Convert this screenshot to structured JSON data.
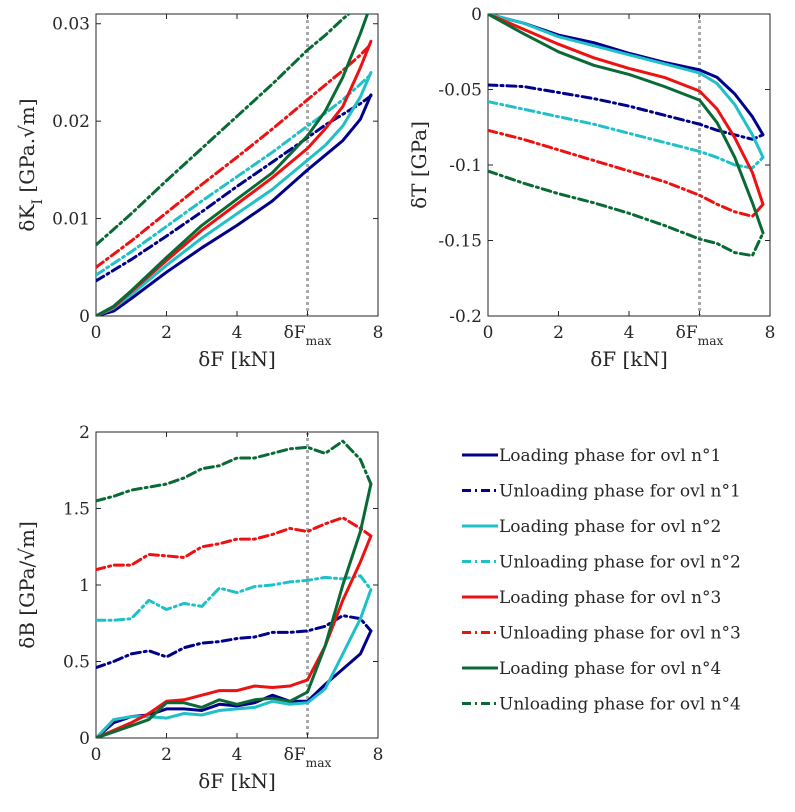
{
  "series_style": [
    {
      "color": "#00008b",
      "dash": "solid"
    },
    {
      "color": "#00008b",
      "dash": "dashdot"
    },
    {
      "color": "#20c0c8",
      "dash": "solid"
    },
    {
      "color": "#20c0c8",
      "dash": "dashdot"
    },
    {
      "color": "#ee1111",
      "dash": "solid"
    },
    {
      "color": "#ee1111",
      "dash": "dashdot"
    },
    {
      "color": "#0a6a35",
      "dash": "solid"
    },
    {
      "color": "#0a6a35",
      "dash": "dashdot"
    }
  ],
  "reference_line": {
    "x": 6,
    "label": "δF_max",
    "color": "#aaaaaa"
  },
  "legend": {
    "placement": "bottom-right",
    "entries": [
      "Loading phase for ovl n°1",
      "Unloading phase for ovl n°1",
      "Loading phase for ovl n°2",
      "Unloading phase for ovl n°2",
      "Loading phase for ovl n°3",
      "Unloading phase for ovl n°3",
      "Loading phase for ovl n°4",
      "Unloading phase for ovl n°4"
    ]
  },
  "chart_data": [
    {
      "type": "line",
      "xlabel": "δF [kN]",
      "ylabel": "δK_I [GPa.√m]",
      "xlim": [
        0,
        8
      ],
      "ylim": [
        0,
        0.031
      ],
      "xticks": [
        "0",
        "2",
        "4",
        "δF_max",
        "8"
      ],
      "xtick_values": [
        0,
        2,
        4,
        6,
        8
      ],
      "yticks": [
        "0",
        "0.01",
        "0.02",
        "0.03"
      ],
      "ytick_values": [
        0,
        0.01,
        0.02,
        0.03
      ],
      "grid": false,
      "series": [
        {
          "name": "Loading phase for ovl n°1",
          "x": [
            0,
            0.5,
            1,
            2,
            3,
            4,
            5,
            6,
            6.5,
            7,
            7.5,
            7.8
          ],
          "y": [
            0,
            0.0005,
            0.0018,
            0.0045,
            0.007,
            0.0093,
            0.0118,
            0.015,
            0.0165,
            0.018,
            0.0202,
            0.0227
          ]
        },
        {
          "name": "Unloading phase for ovl n°1",
          "x": [
            0,
            1,
            2,
            3,
            4,
            5,
            6,
            6.5,
            7,
            7.5,
            7.8
          ],
          "y": [
            0.0036,
            0.0058,
            0.0082,
            0.0107,
            0.0133,
            0.0158,
            0.0183,
            0.0196,
            0.0207,
            0.0218,
            0.0226
          ]
        },
        {
          "name": "Loading phase for ovl n°2",
          "x": [
            0,
            0.5,
            1,
            2,
            3,
            4,
            5,
            6,
            6.5,
            7,
            7.5,
            7.8
          ],
          "y": [
            0,
            0.0008,
            0.0022,
            0.0052,
            0.008,
            0.0105,
            0.013,
            0.016,
            0.0175,
            0.0195,
            0.0225,
            0.025
          ]
        },
        {
          "name": "Unloading phase for ovl n°2",
          "x": [
            0,
            1,
            2,
            3,
            4,
            5,
            6,
            6.5,
            7,
            7.5,
            7.8
          ],
          "y": [
            0.0042,
            0.0066,
            0.0092,
            0.0118,
            0.0143,
            0.0168,
            0.0195,
            0.0208,
            0.0222,
            0.0238,
            0.0248
          ]
        },
        {
          "name": "Loading phase for ovl n°3",
          "x": [
            0,
            0.5,
            1,
            2,
            3,
            4,
            5,
            6,
            6.5,
            7,
            7.5,
            7.8
          ],
          "y": [
            0,
            0.0009,
            0.0025,
            0.0057,
            0.0088,
            0.0115,
            0.0142,
            0.0172,
            0.0192,
            0.0215,
            0.0255,
            0.0282
          ]
        },
        {
          "name": "Unloading phase for ovl n°3",
          "x": [
            0,
            1,
            2,
            3,
            4,
            5,
            6,
            6.5,
            7,
            7.5,
            7.8
          ],
          "y": [
            0.005,
            0.0077,
            0.0106,
            0.0135,
            0.0163,
            0.0192,
            0.0222,
            0.0237,
            0.0252,
            0.0268,
            0.0279
          ]
        },
        {
          "name": "Loading phase for ovl n°4",
          "x": [
            0,
            0.5,
            1,
            2,
            3,
            4,
            5,
            6,
            6.5,
            7,
            7.5,
            7.8
          ],
          "y": [
            0,
            0.001,
            0.0026,
            0.006,
            0.0093,
            0.012,
            0.0147,
            0.0185,
            0.021,
            0.0245,
            0.029,
            0.032
          ]
        },
        {
          "name": "Unloading phase for ovl n°4",
          "x": [
            0,
            1,
            2,
            3,
            4,
            5,
            6,
            6.5,
            7,
            7.5,
            7.8
          ],
          "y": [
            0.0073,
            0.0105,
            0.0139,
            0.0172,
            0.0205,
            0.0238,
            0.0273,
            0.0288,
            0.0305,
            0.032,
            0.032
          ]
        }
      ]
    },
    {
      "type": "line",
      "xlabel": "δF [kN]",
      "ylabel": "δT [GPa]",
      "xlim": [
        0,
        8
      ],
      "ylim": [
        -0.2,
        0
      ],
      "xticks": [
        "0",
        "2",
        "4",
        "δF_max",
        "8"
      ],
      "xtick_values": [
        0,
        2,
        4,
        6,
        8
      ],
      "yticks": [
        "0",
        "-0.05",
        "-0.1",
        "-0.15",
        "-0.2"
      ],
      "ytick_values": [
        0,
        -0.05,
        -0.1,
        -0.15,
        -0.2
      ],
      "grid": false,
      "series": [
        {
          "name": "Loading phase for ovl n°1",
          "x": [
            0,
            1,
            2,
            3,
            4,
            5,
            6,
            6.5,
            7,
            7.5,
            7.8
          ],
          "y": [
            0,
            -0.006,
            -0.014,
            -0.019,
            -0.026,
            -0.032,
            -0.037,
            -0.042,
            -0.053,
            -0.068,
            -0.08
          ]
        },
        {
          "name": "Unloading phase for ovl n°1",
          "x": [
            0,
            1,
            2,
            3,
            4,
            5,
            6,
            6.5,
            7,
            7.5,
            7.8
          ],
          "y": [
            -0.047,
            -0.048,
            -0.052,
            -0.056,
            -0.061,
            -0.067,
            -0.073,
            -0.077,
            -0.08,
            -0.083,
            -0.08
          ]
        },
        {
          "name": "Loading phase for ovl n°2",
          "x": [
            0,
            1,
            2,
            3,
            4,
            5,
            6,
            6.5,
            7,
            7.5,
            7.8
          ],
          "y": [
            0,
            -0.006,
            -0.015,
            -0.021,
            -0.027,
            -0.033,
            -0.039,
            -0.046,
            -0.06,
            -0.08,
            -0.095
          ]
        },
        {
          "name": "Unloading phase for ovl n°2",
          "x": [
            0,
            1,
            2,
            3,
            4,
            5,
            6,
            6.5,
            7,
            7.5,
            7.8
          ],
          "y": [
            -0.058,
            -0.063,
            -0.068,
            -0.073,
            -0.079,
            -0.085,
            -0.091,
            -0.095,
            -0.1,
            -0.102,
            -0.095
          ]
        },
        {
          "name": "Loading phase for ovl n°3",
          "x": [
            0,
            1,
            2,
            3,
            4,
            5,
            6,
            6.5,
            7,
            7.5,
            7.8
          ],
          "y": [
            0,
            -0.01,
            -0.02,
            -0.029,
            -0.036,
            -0.042,
            -0.051,
            -0.063,
            -0.082,
            -0.105,
            -0.126
          ]
        },
        {
          "name": "Unloading phase for ovl n°3",
          "x": [
            0,
            1,
            2,
            3,
            4,
            5,
            6,
            6.5,
            7,
            7.5,
            7.8
          ],
          "y": [
            -0.077,
            -0.083,
            -0.09,
            -0.097,
            -0.104,
            -0.111,
            -0.12,
            -0.126,
            -0.131,
            -0.134,
            -0.126
          ]
        },
        {
          "name": "Loading phase for ovl n°4",
          "x": [
            0,
            1,
            2,
            3,
            4,
            5,
            6,
            6.5,
            7,
            7.5,
            7.8
          ],
          "y": [
            0,
            -0.013,
            -0.025,
            -0.034,
            -0.04,
            -0.048,
            -0.057,
            -0.072,
            -0.095,
            -0.125,
            -0.145
          ]
        },
        {
          "name": "Unloading phase for ovl n°4",
          "x": [
            0,
            1,
            2,
            3,
            4,
            5,
            6,
            6.5,
            7,
            7.5,
            7.8
          ],
          "y": [
            -0.104,
            -0.112,
            -0.119,
            -0.125,
            -0.132,
            -0.14,
            -0.149,
            -0.152,
            -0.158,
            -0.16,
            -0.145
          ]
        }
      ]
    },
    {
      "type": "line",
      "xlabel": "δF [kN]",
      "ylabel": "δB [GPa/√m]",
      "xlim": [
        0,
        8
      ],
      "ylim": [
        0,
        2
      ],
      "xticks": [
        "0",
        "2",
        "4",
        "δF_max",
        "8"
      ],
      "xtick_values": [
        0,
        2,
        4,
        6,
        8
      ],
      "yticks": [
        "0",
        "0.5",
        "1",
        "1.5",
        "2"
      ],
      "ytick_values": [
        0,
        0.5,
        1,
        1.5,
        2
      ],
      "grid": false,
      "series": [
        {
          "name": "Loading phase for ovl n°1",
          "x": [
            0,
            0.5,
            1,
            1.5,
            2,
            2.5,
            3,
            3.5,
            4,
            4.5,
            5,
            5.5,
            6,
            6.5,
            7,
            7.5,
            7.8
          ],
          "y": [
            0,
            0.1,
            0.14,
            0.15,
            0.19,
            0.19,
            0.18,
            0.22,
            0.21,
            0.23,
            0.28,
            0.24,
            0.24,
            0.35,
            0.45,
            0.55,
            0.7
          ]
        },
        {
          "name": "Unloading phase for ovl n°1",
          "x": [
            0,
            0.5,
            1,
            1.5,
            2,
            2.5,
            3,
            3.5,
            4,
            4.5,
            5,
            5.5,
            6,
            6.5,
            7,
            7.5,
            7.8
          ],
          "y": [
            0.46,
            0.5,
            0.55,
            0.57,
            0.53,
            0.59,
            0.62,
            0.63,
            0.65,
            0.66,
            0.69,
            0.69,
            0.7,
            0.73,
            0.8,
            0.78,
            0.7
          ]
        },
        {
          "name": "Loading phase for ovl n°2",
          "x": [
            0,
            0.5,
            1,
            1.5,
            2,
            2.5,
            3,
            3.5,
            4,
            4.5,
            5,
            5.5,
            6,
            6.5,
            7,
            7.5,
            7.8
          ],
          "y": [
            0,
            0.12,
            0.14,
            0.14,
            0.13,
            0.16,
            0.15,
            0.18,
            0.19,
            0.2,
            0.24,
            0.22,
            0.23,
            0.32,
            0.55,
            0.78,
            0.97
          ]
        },
        {
          "name": "Unloading phase for ovl n°2",
          "x": [
            0,
            0.5,
            1,
            1.5,
            2,
            2.5,
            3,
            3.5,
            4,
            4.5,
            5,
            5.5,
            6,
            6.5,
            7,
            7.5,
            7.8
          ],
          "y": [
            0.77,
            0.77,
            0.78,
            0.9,
            0.84,
            0.88,
            0.86,
            0.98,
            0.95,
            0.99,
            1.0,
            1.02,
            1.03,
            1.05,
            1.04,
            1.06,
            0.97
          ]
        },
        {
          "name": "Loading phase for ovl n°3",
          "x": [
            0,
            0.5,
            1,
            1.5,
            2,
            2.5,
            3,
            3.5,
            4,
            4.5,
            5,
            5.5,
            6,
            6.5,
            7,
            7.5,
            7.8
          ],
          "y": [
            0,
            0.05,
            0.1,
            0.16,
            0.24,
            0.25,
            0.28,
            0.31,
            0.31,
            0.34,
            0.33,
            0.34,
            0.38,
            0.6,
            0.9,
            1.15,
            1.32
          ]
        },
        {
          "name": "Unloading phase for ovl n°3",
          "x": [
            0,
            0.5,
            1,
            1.5,
            2,
            2.5,
            3,
            3.5,
            4,
            4.5,
            5,
            5.5,
            6,
            6.5,
            7,
            7.5,
            7.8
          ],
          "y": [
            1.1,
            1.13,
            1.13,
            1.2,
            1.19,
            1.18,
            1.25,
            1.27,
            1.3,
            1.3,
            1.33,
            1.37,
            1.35,
            1.4,
            1.44,
            1.37,
            1.32
          ]
        },
        {
          "name": "Loading phase for ovl n°4",
          "x": [
            0,
            0.5,
            1,
            1.5,
            2,
            2.5,
            3,
            3.5,
            4,
            4.5,
            5,
            5.5,
            6,
            6.5,
            7,
            7.5,
            7.8
          ],
          "y": [
            0,
            0.04,
            0.08,
            0.12,
            0.23,
            0.23,
            0.2,
            0.25,
            0.22,
            0.25,
            0.26,
            0.24,
            0.3,
            0.6,
            1.0,
            1.35,
            1.66
          ]
        },
        {
          "name": "Unloading phase for ovl n°4",
          "x": [
            0,
            0.5,
            1,
            1.5,
            2,
            2.5,
            3,
            3.5,
            4,
            4.5,
            5,
            5.5,
            6,
            6.5,
            7,
            7.5,
            7.8
          ],
          "y": [
            1.55,
            1.58,
            1.62,
            1.64,
            1.66,
            1.7,
            1.76,
            1.78,
            1.83,
            1.83,
            1.86,
            1.89,
            1.9,
            1.86,
            1.94,
            1.82,
            1.66
          ]
        }
      ]
    }
  ]
}
